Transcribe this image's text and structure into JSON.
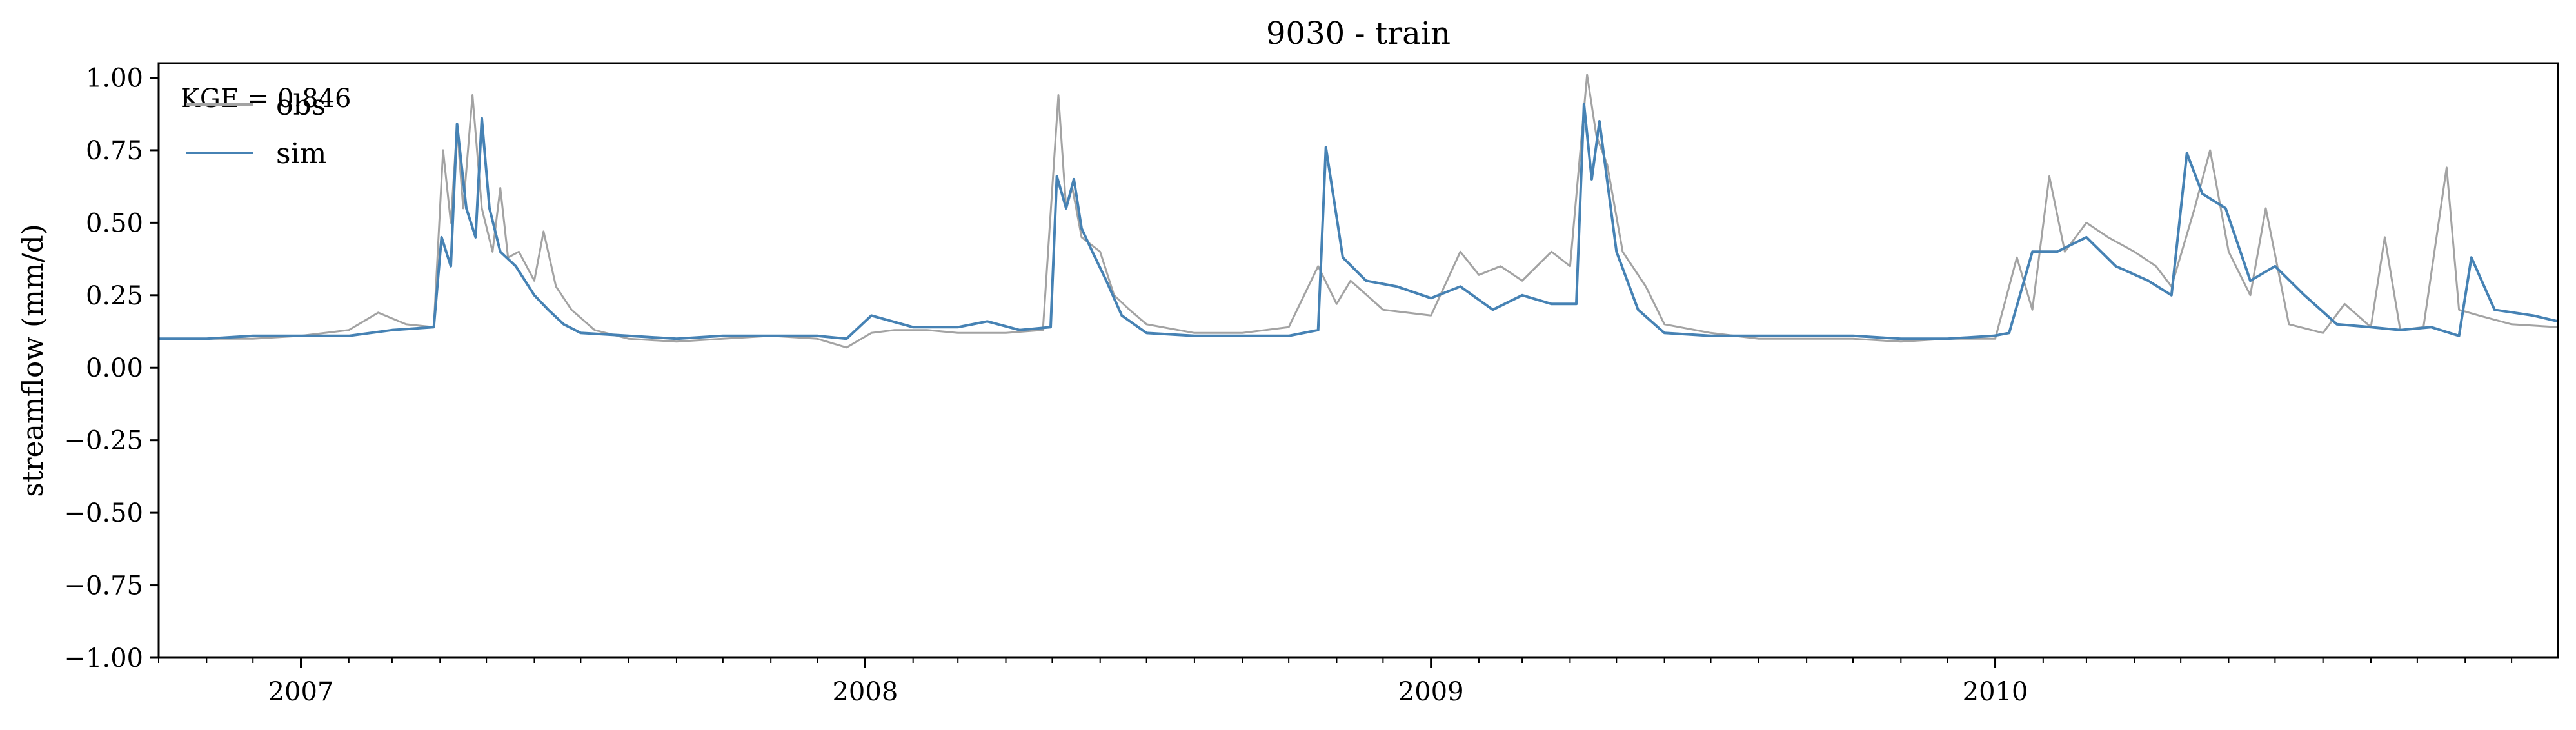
{
  "chart_data": {
    "type": "line",
    "title": "9030 - train",
    "xlabel": "",
    "ylabel": "streamflow (mm/d)",
    "xlim": [
      "2006-10-01",
      "2010-12-31"
    ],
    "ylim": [
      -1.0,
      1.05
    ],
    "yticks": [
      -1.0,
      -0.75,
      -0.5,
      -0.25,
      0.0,
      0.25,
      0.5,
      0.75,
      1.0
    ],
    "ytick_labels": [
      "−1.00",
      "−0.75",
      "−0.50",
      "−0.25",
      "0.00",
      "0.25",
      "0.50",
      "0.75",
      "1.00"
    ],
    "xticks_major": [
      "2007-01-01",
      "2008-01-01",
      "2009-01-01",
      "2010-01-01"
    ],
    "xtick_labels": [
      "2007",
      "2008",
      "2009",
      "2010"
    ],
    "grid": false,
    "legend_position": "top-left",
    "annotation": "KGE = 0.846",
    "series": [
      {
        "name": "obs",
        "color": "#a3a3a3",
        "x": [
          "2006-10-01",
          "2006-11-01",
          "2006-12-01",
          "2007-01-01",
          "2007-02-01",
          "2007-02-20",
          "2007-03-10",
          "2007-03-28",
          "2007-04-03",
          "2007-04-08",
          "2007-04-12",
          "2007-04-16",
          "2007-04-22",
          "2007-04-28",
          "2007-05-05",
          "2007-05-10",
          "2007-05-15",
          "2007-05-22",
          "2007-06-01",
          "2007-06-07",
          "2007-06-15",
          "2007-06-25",
          "2007-07-10",
          "2007-08-01",
          "2007-09-01",
          "2007-10-01",
          "2007-11-01",
          "2007-12-01",
          "2007-12-20",
          "2008-01-05",
          "2008-01-20",
          "2008-02-10",
          "2008-03-01",
          "2008-04-01",
          "2008-04-25",
          "2008-05-05",
          "2008-05-10",
          "2008-05-14",
          "2008-05-20",
          "2008-06-01",
          "2008-06-10",
          "2008-06-20",
          "2008-07-01",
          "2008-08-01",
          "2008-09-01",
          "2008-10-01",
          "2008-10-20",
          "2008-11-01",
          "2008-11-10",
          "2008-12-01",
          "2009-01-01",
          "2009-01-20",
          "2009-02-01",
          "2009-02-15",
          "2009-03-01",
          "2009-03-20",
          "2009-04-01",
          "2009-04-12",
          "2009-04-18",
          "2009-04-25",
          "2009-05-05",
          "2009-05-20",
          "2009-06-01",
          "2009-07-01",
          "2009-08-01",
          "2009-09-01",
          "2009-10-01",
          "2009-11-01",
          "2009-12-01",
          "2010-01-01",
          "2010-01-15",
          "2010-01-25",
          "2010-02-05",
          "2010-02-15",
          "2010-03-01",
          "2010-03-15",
          "2010-04-01",
          "2010-04-15",
          "2010-04-25",
          "2010-05-10",
          "2010-05-20",
          "2010-06-01",
          "2010-06-15",
          "2010-06-25",
          "2010-07-10",
          "2010-08-01",
          "2010-08-15",
          "2010-09-01",
          "2010-09-10",
          "2010-09-20",
          "2010-10-05",
          "2010-10-20",
          "2010-10-28",
          "2010-11-10",
          "2010-12-01",
          "2010-12-31"
        ],
        "values": [
          0.1,
          0.1,
          0.1,
          0.11,
          0.13,
          0.19,
          0.15,
          0.14,
          0.75,
          0.5,
          0.83,
          0.55,
          0.94,
          0.55,
          0.4,
          0.62,
          0.38,
          0.4,
          0.3,
          0.47,
          0.28,
          0.2,
          0.13,
          0.1,
          0.09,
          0.1,
          0.11,
          0.1,
          0.07,
          0.12,
          0.13,
          0.13,
          0.12,
          0.12,
          0.13,
          0.94,
          0.55,
          0.62,
          0.45,
          0.4,
          0.25,
          0.2,
          0.15,
          0.12,
          0.12,
          0.14,
          0.35,
          0.22,
          0.3,
          0.2,
          0.18,
          0.4,
          0.32,
          0.35,
          0.3,
          0.4,
          0.35,
          1.01,
          0.8,
          0.7,
          0.4,
          0.28,
          0.15,
          0.12,
          0.1,
          0.1,
          0.1,
          0.09,
          0.1,
          0.1,
          0.38,
          0.2,
          0.66,
          0.4,
          0.5,
          0.45,
          0.4,
          0.35,
          0.28,
          0.55,
          0.75,
          0.4,
          0.25,
          0.55,
          0.15,
          0.12,
          0.22,
          0.14,
          0.45,
          0.13,
          0.14,
          0.69,
          0.2,
          0.18,
          0.15,
          0.14
        ]
      },
      {
        "name": "sim",
        "color": "#4682b4",
        "x": [
          "2006-10-01",
          "2006-11-01",
          "2006-12-01",
          "2007-01-01",
          "2007-02-01",
          "2007-03-01",
          "2007-03-28",
          "2007-04-02",
          "2007-04-08",
          "2007-04-12",
          "2007-04-18",
          "2007-04-24",
          "2007-04-28",
          "2007-05-03",
          "2007-05-10",
          "2007-05-20",
          "2007-06-01",
          "2007-06-10",
          "2007-06-20",
          "2007-07-01",
          "2007-08-01",
          "2007-09-01",
          "2007-10-01",
          "2007-11-01",
          "2007-12-01",
          "2007-12-20",
          "2008-01-05",
          "2008-02-01",
          "2008-03-01",
          "2008-03-20",
          "2008-04-10",
          "2008-04-30",
          "2008-05-04",
          "2008-05-10",
          "2008-05-15",
          "2008-05-20",
          "2008-05-27",
          "2008-06-05",
          "2008-06-15",
          "2008-07-01",
          "2008-08-01",
          "2008-09-01",
          "2008-10-01",
          "2008-10-20",
          "2008-10-25",
          "2008-11-05",
          "2008-11-20",
          "2008-12-10",
          "2009-01-01",
          "2009-01-20",
          "2009-02-10",
          "2009-03-01",
          "2009-03-20",
          "2009-04-05",
          "2009-04-10",
          "2009-04-15",
          "2009-04-20",
          "2009-05-01",
          "2009-05-15",
          "2009-06-01",
          "2009-07-01",
          "2009-08-01",
          "2009-09-01",
          "2009-10-01",
          "2009-11-01",
          "2009-12-01",
          "2009-12-31",
          "2010-01-10",
          "2010-01-25",
          "2010-02-10",
          "2010-03-01",
          "2010-03-20",
          "2010-04-10",
          "2010-04-25",
          "2010-05-05",
          "2010-05-15",
          "2010-05-30",
          "2010-06-15",
          "2010-07-01",
          "2010-07-20",
          "2010-08-10",
          "2010-09-01",
          "2010-09-20",
          "2010-10-10",
          "2010-10-28",
          "2010-11-05",
          "2010-11-20",
          "2010-12-15",
          "2010-12-31"
        ],
        "values": [
          0.1,
          0.1,
          0.11,
          0.11,
          0.11,
          0.13,
          0.14,
          0.45,
          0.35,
          0.84,
          0.55,
          0.45,
          0.86,
          0.55,
          0.4,
          0.35,
          0.25,
          0.2,
          0.15,
          0.12,
          0.11,
          0.1,
          0.11,
          0.11,
          0.11,
          0.1,
          0.18,
          0.14,
          0.14,
          0.16,
          0.13,
          0.14,
          0.66,
          0.55,
          0.65,
          0.48,
          0.4,
          0.3,
          0.18,
          0.12,
          0.11,
          0.11,
          0.11,
          0.13,
          0.76,
          0.38,
          0.3,
          0.28,
          0.24,
          0.28,
          0.2,
          0.25,
          0.22,
          0.22,
          0.91,
          0.65,
          0.85,
          0.4,
          0.2,
          0.12,
          0.11,
          0.11,
          0.11,
          0.11,
          0.1,
          0.1,
          0.11,
          0.12,
          0.4,
          0.4,
          0.45,
          0.35,
          0.3,
          0.25,
          0.74,
          0.6,
          0.55,
          0.3,
          0.35,
          0.25,
          0.15,
          0.14,
          0.13,
          0.14,
          0.11,
          0.38,
          0.2,
          0.18,
          0.16
        ]
      }
    ]
  }
}
